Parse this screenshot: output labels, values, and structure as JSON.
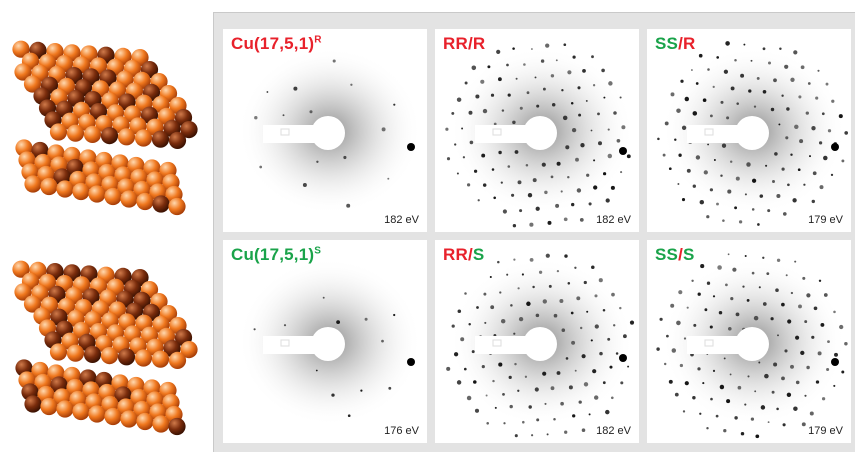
{
  "colors": {
    "R": "#e8212b",
    "S": "#1aa34a",
    "sep": "#e8212b"
  },
  "clusters": [
    {
      "name": "cluster-r-icon"
    },
    {
      "name": "cluster-s-icon"
    }
  ],
  "tiles": [
    {
      "label_parts": [
        {
          "text": "Cu(17,5,1)",
          "color": "R"
        },
        {
          "text": "R",
          "color": "R",
          "sup": true
        }
      ],
      "energy": "182 eV",
      "spots": "sparse"
    },
    {
      "label_parts": [
        {
          "text": "RR",
          "color": "R"
        },
        {
          "text": "/",
          "color": "sep"
        },
        {
          "text": "R",
          "color": "R"
        }
      ],
      "energy": "182 eV",
      "spots": "dense"
    },
    {
      "label_parts": [
        {
          "text": "SS",
          "color": "S"
        },
        {
          "text": "/",
          "color": "sep"
        },
        {
          "text": "R",
          "color": "R"
        }
      ],
      "energy": "179 eV",
      "spots": "dense"
    },
    {
      "label_parts": [
        {
          "text": "Cu(17,5,1)",
          "color": "S"
        },
        {
          "text": "S",
          "color": "S",
          "sup": true
        }
      ],
      "energy": "176 eV",
      "spots": "sparse"
    },
    {
      "label_parts": [
        {
          "text": "RR",
          "color": "R"
        },
        {
          "text": "/",
          "color": "sep"
        },
        {
          "text": "S",
          "color": "S"
        }
      ],
      "energy": "182 eV",
      "spots": "dense"
    },
    {
      "label_parts": [
        {
          "text": "SS",
          "color": "S"
        },
        {
          "text": "/",
          "color": "sep"
        },
        {
          "text": "S",
          "color": "S"
        }
      ],
      "energy": "179 eV",
      "spots": "dense"
    }
  ]
}
